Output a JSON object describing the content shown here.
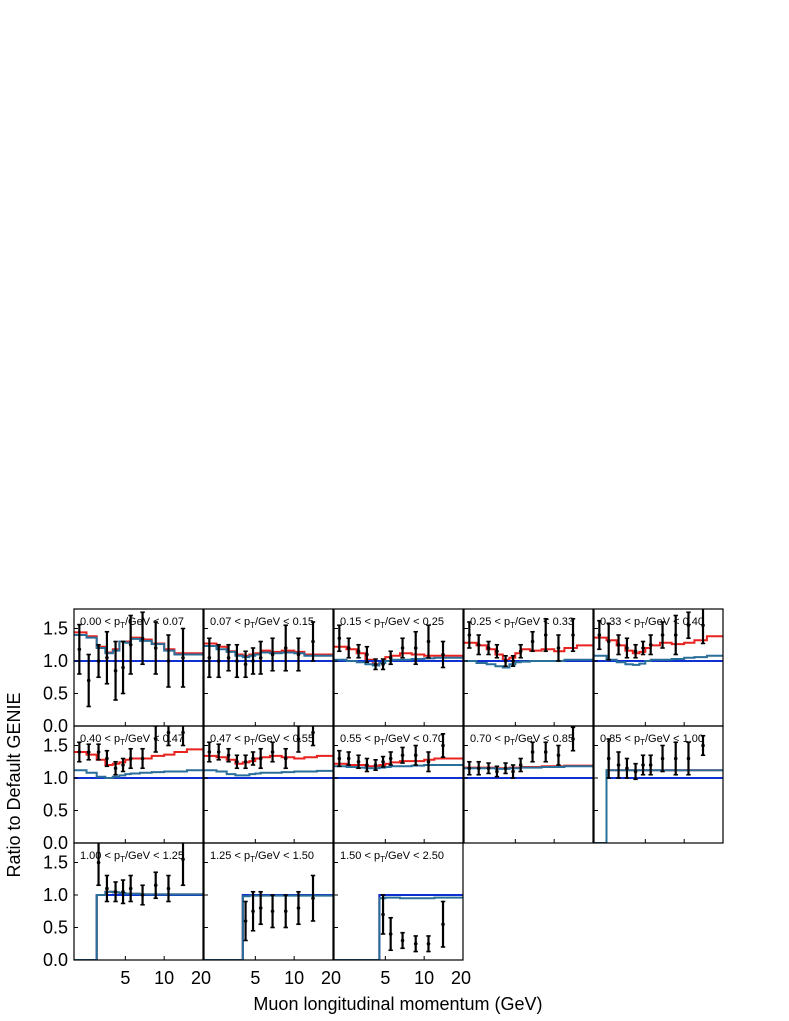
{
  "chart_data": {
    "type": "line",
    "xlabel": "Muon longitudinal momentum (GeV)",
    "ylabel": "Ratio to Default GENIE",
    "x_scale": "log",
    "xlim": [
      2,
      20
    ],
    "ylim": [
      0,
      1.8
    ],
    "x_tick_labels": [
      "5",
      "10",
      "20"
    ],
    "y_tick_labels": [
      "0.0",
      "0.5",
      "1.0",
      "1.5"
    ],
    "x_bin_edges": [
      2.0,
      2.5,
      3.0,
      3.5,
      4.0,
      4.5,
      5.0,
      5.5,
      6.5,
      8.0,
      10.0,
      12.0,
      15.0,
      20.0
    ],
    "colors": {
      "data": "#000000",
      "red_model": "#e8221f",
      "blue_model": "#0e2fd1",
      "teal_model": "#2a6f9a"
    },
    "panels": [
      {
        "label": "0.00 < p_T/GeV < 0.07",
        "red": [
          1.44,
          1.38,
          1.22,
          1.13,
          1.18,
          1.3,
          1.3,
          1.36,
          1.33,
          1.27,
          1.18,
          1.12,
          1.12
        ],
        "blue": [
          1.0,
          1.0,
          1.0,
          1.0,
          1.0,
          1.0,
          1.0,
          1.0,
          1.0,
          1.0,
          1.0,
          1.0,
          1.0
        ],
        "teal": [
          1.4,
          1.36,
          1.2,
          1.12,
          1.16,
          1.3,
          1.28,
          1.34,
          1.31,
          1.26,
          1.16,
          1.1,
          1.1
        ],
        "data_x": [
          2.2,
          2.6,
          3.1,
          3.6,
          4.2,
          4.8,
          5.5,
          6.8,
          8.6,
          10.8,
          14.0
        ],
        "data_y": [
          1.18,
          0.7,
          1.0,
          1.05,
          0.85,
          0.9,
          1.25,
          1.35,
          1.2,
          1.0,
          1.05
        ],
        "data_err": [
          0.38,
          0.4,
          0.25,
          0.4,
          0.45,
          0.4,
          0.45,
          0.4,
          0.4,
          0.4,
          0.45
        ]
      },
      {
        "label": "0.07 < p_T/GeV < 0.15",
        "red": [
          1.27,
          1.22,
          1.15,
          1.1,
          1.08,
          1.1,
          1.12,
          1.16,
          1.14,
          1.16,
          1.14,
          1.1,
          1.1
        ],
        "blue": [
          1.0,
          1.0,
          1.0,
          1.0,
          1.0,
          1.0,
          1.0,
          1.0,
          1.0,
          1.0,
          1.0,
          1.0,
          1.0
        ],
        "teal": [
          1.23,
          1.18,
          1.14,
          1.08,
          1.06,
          1.08,
          1.1,
          1.13,
          1.12,
          1.13,
          1.12,
          1.08,
          1.08
        ],
        "data_x": [
          2.2,
          2.6,
          3.1,
          3.6,
          4.2,
          4.8,
          5.5,
          6.8,
          8.6,
          10.8,
          14.0
        ],
        "data_y": [
          1.05,
          1.0,
          1.05,
          1.0,
          0.95,
          1.0,
          1.05,
          1.1,
          1.2,
          1.1,
          1.3
        ],
        "data_err": [
          0.3,
          0.25,
          0.2,
          0.25,
          0.2,
          0.2,
          0.25,
          0.25,
          0.35,
          0.25,
          0.3
        ]
      },
      {
        "label": "0.15 < p_T/GeV < 0.25",
        "red": [
          1.22,
          1.18,
          1.12,
          1.02,
          0.95,
          1.0,
          1.06,
          1.08,
          1.12,
          1.1,
          1.08,
          1.08,
          1.08
        ],
        "blue": [
          1.0,
          1.0,
          1.0,
          1.0,
          1.0,
          1.0,
          1.0,
          1.0,
          1.0,
          1.0,
          1.0,
          1.0,
          1.0
        ],
        "teal": [
          1.02,
          1.0,
          0.98,
          0.95,
          0.93,
          0.97,
          1.0,
          1.02,
          1.02,
          1.03,
          1.04,
          1.05,
          1.05
        ],
        "data_x": [
          2.2,
          2.6,
          3.1,
          3.6,
          4.2,
          4.8,
          5.5,
          6.8,
          8.6,
          10.8,
          14.0
        ],
        "data_y": [
          1.35,
          1.2,
          1.15,
          1.1,
          0.95,
          0.95,
          1.05,
          1.2,
          1.2,
          1.3,
          1.1
        ],
        "data_err": [
          0.2,
          0.15,
          0.1,
          0.12,
          0.08,
          0.08,
          0.1,
          0.15,
          0.25,
          0.25,
          0.2
        ]
      },
      {
        "label": "0.25 < p_T/GeV < 0.33",
        "red": [
          1.28,
          1.24,
          1.18,
          1.1,
          1.02,
          1.05,
          1.12,
          1.18,
          1.16,
          1.18,
          1.15,
          1.2,
          1.24
        ],
        "blue": [
          1.0,
          1.0,
          1.0,
          1.0,
          1.0,
          1.0,
          1.0,
          1.0,
          1.0,
          1.0,
          1.0,
          1.0,
          1.0
        ],
        "teal": [
          1.0,
          0.97,
          0.95,
          0.92,
          0.9,
          0.95,
          0.98,
          0.99,
          1.0,
          1.0,
          1.0,
          1.02,
          1.02
        ],
        "data_x": [
          2.2,
          2.6,
          3.1,
          3.6,
          4.2,
          4.8,
          5.5,
          6.8,
          8.6,
          10.8,
          14.0
        ],
        "data_y": [
          1.4,
          1.25,
          1.2,
          1.15,
          1.0,
          1.0,
          1.15,
          1.3,
          1.4,
          1.2,
          1.4
        ],
        "data_err": [
          0.2,
          0.15,
          0.1,
          0.1,
          0.08,
          0.08,
          0.1,
          0.15,
          0.25,
          0.2,
          0.25
        ]
      },
      {
        "label": "0.33 < p_T/GeV < 0.40",
        "red": [
          1.36,
          1.32,
          1.24,
          1.16,
          1.12,
          1.14,
          1.2,
          1.24,
          1.28,
          1.26,
          1.28,
          1.32,
          1.38
        ],
        "blue": [
          1.0,
          1.0,
          1.0,
          1.0,
          1.0,
          1.0,
          1.0,
          1.0,
          1.0,
          1.0,
          1.0,
          1.0,
          1.0
        ],
        "teal": [
          1.08,
          1.02,
          0.98,
          0.95,
          0.94,
          0.96,
          1.0,
          1.02,
          1.02,
          1.03,
          1.05,
          1.06,
          1.08
        ],
        "data_x": [
          2.2,
          2.6,
          3.1,
          3.6,
          4.2,
          4.8,
          5.5,
          6.8,
          8.6,
          10.8,
          14.0
        ],
        "data_y": [
          1.4,
          1.3,
          1.25,
          1.2,
          1.15,
          1.2,
          1.25,
          1.4,
          1.4,
          1.55,
          1.55
        ],
        "data_err": [
          0.22,
          0.28,
          0.15,
          0.15,
          0.1,
          0.1,
          0.15,
          0.2,
          0.3,
          0.2,
          0.28
        ]
      },
      {
        "label": "0.40 < p_T/GeV < 0.47",
        "red": [
          1.4,
          1.36,
          1.28,
          1.2,
          1.22,
          1.24,
          1.28,
          1.3,
          1.3,
          1.34,
          1.36,
          1.4,
          1.44
        ],
        "blue": [
          1.0,
          1.0,
          1.0,
          1.0,
          1.0,
          1.0,
          1.0,
          1.0,
          1.0,
          1.0,
          1.0,
          1.0,
          1.0
        ],
        "teal": [
          1.12,
          1.08,
          1.02,
          1.0,
          1.02,
          1.04,
          1.06,
          1.07,
          1.08,
          1.09,
          1.1,
          1.1,
          1.12
        ],
        "data_x": [
          2.2,
          2.6,
          3.1,
          3.6,
          4.2,
          4.8,
          5.5,
          6.8,
          8.6,
          10.8,
          14.0
        ],
        "data_y": [
          1.4,
          1.4,
          1.4,
          1.3,
          1.15,
          1.2,
          1.3,
          1.3,
          1.6,
          1.7,
          1.7
        ],
        "data_err": [
          0.15,
          0.12,
          0.12,
          0.12,
          0.1,
          0.1,
          0.15,
          0.15,
          0.2,
          0.2,
          0.2
        ]
      },
      {
        "label": "0.47 < p_T/GeV < 0.55",
        "red": [
          1.34,
          1.32,
          1.28,
          1.22,
          1.24,
          1.26,
          1.3,
          1.32,
          1.34,
          1.32,
          1.3,
          1.32,
          1.34
        ],
        "blue": [
          1.0,
          1.0,
          1.0,
          1.0,
          1.0,
          1.0,
          1.0,
          1.0,
          1.0,
          1.0,
          1.0,
          1.0,
          1.0
        ],
        "teal": [
          1.12,
          1.1,
          1.06,
          1.04,
          1.04,
          1.06,
          1.07,
          1.08,
          1.08,
          1.09,
          1.1,
          1.1,
          1.11
        ],
        "data_x": [
          2.2,
          2.6,
          3.1,
          3.6,
          4.2,
          4.8,
          5.5,
          6.8,
          8.6,
          10.8,
          14.0
        ],
        "data_y": [
          1.4,
          1.4,
          1.35,
          1.25,
          1.25,
          1.3,
          1.3,
          1.4,
          1.3,
          1.6,
          1.7
        ],
        "data_err": [
          0.15,
          0.12,
          0.1,
          0.1,
          0.1,
          0.1,
          0.15,
          0.15,
          0.15,
          0.2,
          0.2
        ]
      },
      {
        "label": "0.55 < p_T/GeV < 0.70",
        "red": [
          1.22,
          1.2,
          1.2,
          1.18,
          1.18,
          1.2,
          1.22,
          1.24,
          1.26,
          1.26,
          1.28,
          1.3,
          1.3
        ],
        "blue": [
          1.0,
          1.0,
          1.0,
          1.0,
          1.0,
          1.0,
          1.0,
          1.0,
          1.0,
          1.0,
          1.0,
          1.0,
          1.0
        ],
        "teal": [
          1.18,
          1.17,
          1.16,
          1.15,
          1.15,
          1.16,
          1.17,
          1.18,
          1.18,
          1.19,
          1.2,
          1.2,
          1.2
        ],
        "data_x": [
          2.2,
          2.6,
          3.1,
          3.6,
          4.2,
          4.8,
          5.5,
          6.8,
          8.6,
          10.8,
          14.0
        ],
        "data_y": [
          1.3,
          1.3,
          1.25,
          1.2,
          1.2,
          1.25,
          1.3,
          1.35,
          1.35,
          1.25,
          1.5
        ],
        "data_err": [
          0.12,
          0.1,
          0.1,
          0.1,
          0.08,
          0.08,
          0.1,
          0.12,
          0.15,
          0.15,
          0.18
        ]
      },
      {
        "label": "0.70 < p_T/GeV < 0.85",
        "red": [
          1.16,
          1.16,
          1.16,
          1.15,
          1.15,
          1.16,
          1.16,
          1.17,
          1.17,
          1.18,
          1.18,
          1.19,
          1.19
        ],
        "blue": [
          1.0,
          1.0,
          1.0,
          1.0,
          1.0,
          1.0,
          1.0,
          1.0,
          1.0,
          1.0,
          1.0,
          1.0,
          1.0
        ],
        "teal": [
          1.15,
          1.15,
          1.15,
          1.14,
          1.14,
          1.15,
          1.15,
          1.16,
          1.16,
          1.17,
          1.17,
          1.18,
          1.18
        ],
        "data_x": [
          2.2,
          2.6,
          3.1,
          3.6,
          4.2,
          4.8,
          5.5,
          6.8,
          8.6,
          10.8,
          14.0
        ],
        "data_y": [
          1.15,
          1.15,
          1.15,
          1.1,
          1.15,
          1.1,
          1.2,
          1.4,
          1.4,
          1.35,
          1.6
        ],
        "data_err": [
          0.1,
          0.1,
          0.08,
          0.08,
          0.08,
          0.1,
          0.1,
          0.15,
          0.15,
          0.15,
          0.18
        ]
      },
      {
        "label": "0.85 < p_T/GeV < 1.00",
        "red": [
          0.0,
          1.12,
          1.12,
          1.12,
          1.12,
          1.12,
          1.12,
          1.12,
          1.12,
          1.12,
          1.12,
          1.12,
          1.12
        ],
        "blue": [
          0.0,
          1.0,
          1.0,
          1.0,
          1.0,
          1.0,
          1.0,
          1.0,
          1.0,
          1.0,
          1.0,
          1.0,
          1.0
        ],
        "teal": [
          0.0,
          1.12,
          1.12,
          1.12,
          1.12,
          1.12,
          1.12,
          1.12,
          1.12,
          1.12,
          1.12,
          1.12,
          1.12
        ],
        "data_x": [
          2.6,
          3.1,
          3.6,
          4.2,
          4.8,
          5.5,
          6.8,
          8.6,
          10.8,
          14.0
        ],
        "data_y": [
          1.3,
          1.2,
          1.15,
          1.1,
          1.2,
          1.2,
          1.3,
          1.3,
          1.3,
          1.5
        ],
        "data_err": [
          0.3,
          0.2,
          0.15,
          0.12,
          0.15,
          0.15,
          0.2,
          0.25,
          0.25,
          0.15
        ]
      },
      {
        "label": "1.00 < p_T/GeV < 1.25",
        "red": [
          0.0,
          0.0,
          1.0,
          1.05,
          1.04,
          1.03,
          1.02,
          1.02,
          1.01,
          1.01,
          1.01,
          1.01,
          1.01
        ],
        "blue": [
          0.0,
          0.0,
          1.0,
          1.0,
          1.0,
          1.0,
          1.0,
          1.0,
          1.0,
          1.0,
          1.0,
          1.0,
          1.0
        ],
        "teal": [
          0.0,
          0.0,
          1.0,
          1.05,
          1.04,
          1.03,
          1.02,
          1.02,
          1.01,
          1.01,
          1.01,
          1.01,
          1.01
        ],
        "data_x": [
          3.1,
          3.6,
          4.2,
          4.8,
          5.5,
          6.8,
          8.6,
          10.8,
          14.0
        ],
        "data_y": [
          1.5,
          1.1,
          1.05,
          1.05,
          1.1,
          1.0,
          1.15,
          1.1,
          1.55
        ],
        "data_err": [
          0.35,
          0.2,
          0.15,
          0.18,
          0.2,
          0.15,
          0.2,
          0.2,
          0.4
        ]
      },
      {
        "label": "1.25 < p_T/GeV < 1.50",
        "red": [
          0.0,
          0.0,
          0.0,
          0.0,
          1.0,
          1.0,
          1.0,
          1.0,
          1.0,
          1.0,
          1.0,
          1.0,
          1.0
        ],
        "blue": [
          0.0,
          0.0,
          0.0,
          0.0,
          1.0,
          1.0,
          1.0,
          1.0,
          1.0,
          1.0,
          1.0,
          1.0,
          1.0
        ],
        "teal": [
          0.0,
          0.0,
          0.0,
          0.0,
          0.98,
          0.99,
          0.99,
          0.99,
          0.99,
          0.99,
          0.99,
          0.99,
          0.99
        ],
        "data_x": [
          4.2,
          4.8,
          5.5,
          6.8,
          8.6,
          10.8,
          14.0
        ],
        "data_y": [
          0.6,
          0.75,
          0.8,
          0.75,
          0.75,
          0.8,
          0.95
        ],
        "data_err": [
          0.3,
          0.3,
          0.25,
          0.25,
          0.25,
          0.25,
          0.35
        ]
      },
      {
        "label": "1.50 < p_T/GeV < 2.50",
        "red": [
          0.0,
          0.0,
          0.0,
          0.0,
          0.0,
          1.0,
          1.0,
          1.0,
          1.0,
          1.0,
          1.0,
          1.0,
          1.0
        ],
        "blue": [
          0.0,
          0.0,
          0.0,
          0.0,
          0.0,
          1.0,
          1.0,
          1.0,
          1.0,
          1.0,
          1.0,
          1.0,
          1.0
        ],
        "teal": [
          0.0,
          0.0,
          0.0,
          0.0,
          0.0,
          0.95,
          0.96,
          0.96,
          0.95,
          0.95,
          0.95,
          0.96,
          0.96
        ],
        "data_x": [
          4.8,
          5.5,
          6.8,
          8.6,
          10.8,
          14.0
        ],
        "data_y": [
          0.7,
          0.4,
          0.3,
          0.25,
          0.25,
          0.55
        ],
        "data_err": [
          0.3,
          0.25,
          0.12,
          0.12,
          0.12,
          0.35
        ]
      }
    ]
  }
}
